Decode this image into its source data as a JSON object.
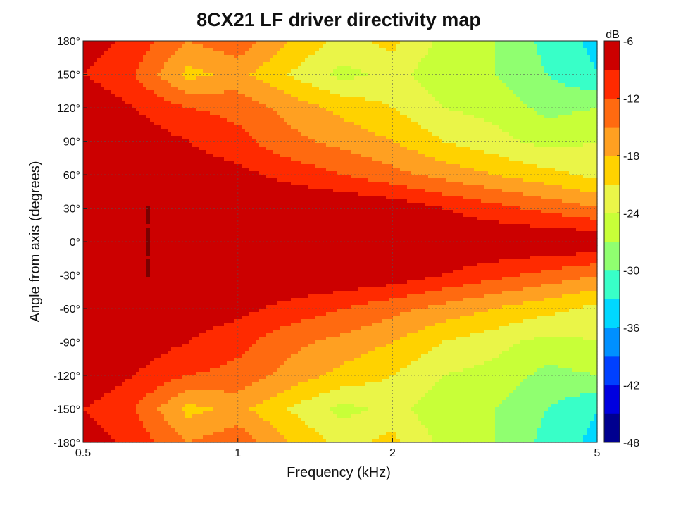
{
  "chart_data": {
    "type": "heatmap",
    "title": "8CX21 LF driver directivity map",
    "xlabel": "Frequency (kHz)",
    "ylabel": "Angle from axis (degrees)",
    "x_scale": "log",
    "xlim": [
      0.5,
      5
    ],
    "ylim": [
      -180,
      180
    ],
    "x_ticks": [
      0.5,
      1,
      2,
      5
    ],
    "x_tick_labels": [
      "0.5",
      "1",
      "2",
      "5"
    ],
    "y_ticks": [
      180,
      150,
      120,
      90,
      60,
      30,
      0,
      -30,
      -60,
      -90,
      -120,
      -150,
      -180
    ],
    "y_tick_labels": [
      "180°",
      "150°",
      "120°",
      "90°",
      "60°",
      "30°",
      "0°",
      "-30°",
      "-60°",
      "-90°",
      "-120°",
      "-150°",
      "-180°"
    ],
    "grid": true,
    "colorbar": {
      "label": "dB",
      "range": [
        -48,
        -6
      ],
      "ticks": [
        -6,
        -12,
        -18,
        -24,
        -30,
        -36,
        -42,
        -48
      ],
      "tick_labels": [
        "-6",
        "-12",
        "-18",
        "-24",
        "-30",
        "-36",
        "-42",
        "-48"
      ],
      "levels": [
        -48,
        -45,
        -42,
        -39,
        -36,
        -33,
        -30,
        -27,
        -24,
        -21,
        -18,
        -15,
        -12,
        -9,
        -6
      ],
      "colors": [
        "#00008f",
        "#0000df",
        "#0040ff",
        "#0090ff",
        "#00d8ff",
        "#38ffc8",
        "#90ff70",
        "#c8ff38",
        "#eaf548",
        "#ffd200",
        "#ffa021",
        "#ff6a10",
        "#ff2a00",
        "#cc0000",
        "#7a0000"
      ]
    },
    "angle_values_deg": [
      0,
      30,
      60,
      90,
      120,
      150,
      180
    ],
    "frequency_values_khz": [
      0.5,
      0.63,
      0.8,
      1.0,
      1.25,
      1.6,
      2.0,
      2.5,
      3.15,
      4.0,
      5.0
    ],
    "levels_db": [
      [
        -6,
        -6,
        -6,
        -6,
        -6,
        -6,
        -6,
        -6,
        -6,
        -6,
        -6
      ],
      [
        -6,
        -6,
        -6,
        -6,
        -6,
        -6,
        -7,
        -9,
        -11,
        -13,
        -15
      ],
      [
        -6,
        -6,
        -7,
        -8,
        -10,
        -12,
        -14,
        -16,
        -18,
        -20,
        -22
      ],
      [
        -6,
        -7,
        -9,
        -11,
        -14,
        -16,
        -18,
        -21,
        -23,
        -25,
        -24
      ],
      [
        -6,
        -9,
        -12,
        -13,
        -16,
        -19,
        -21,
        -24,
        -25,
        -28,
        -27
      ],
      [
        -9,
        -12,
        -19,
        -17,
        -21,
        -25,
        -23,
        -26,
        -27,
        -30,
        -33
      ],
      [
        -7,
        -10,
        -15,
        -13,
        -18,
        -22,
        -20,
        -25,
        -27,
        -31,
        -34
      ]
    ]
  }
}
